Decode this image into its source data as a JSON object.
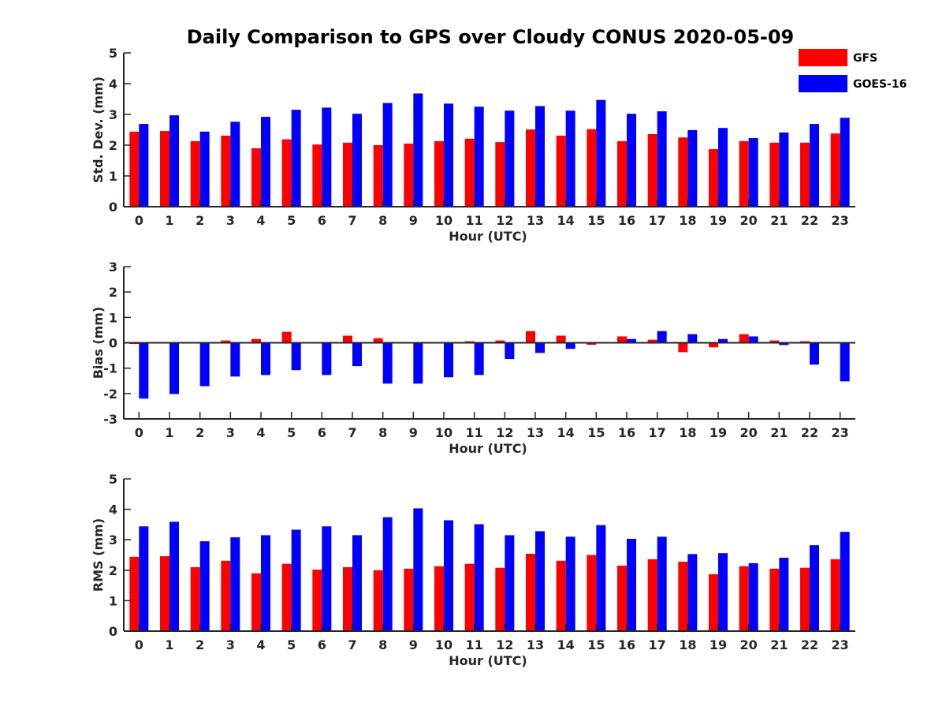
{
  "chart_data": {
    "type": "bar",
    "title": "Daily Comparison to GPS over Cloudy CONUS 2020-05-09",
    "categories": [
      "0",
      "1",
      "2",
      "3",
      "4",
      "5",
      "6",
      "7",
      "8",
      "9",
      "10",
      "11",
      "12",
      "13",
      "14",
      "15",
      "16",
      "17",
      "18",
      "19",
      "20",
      "21",
      "22",
      "23"
    ],
    "legend": {
      "position": "top-right",
      "entries": [
        {
          "name": "GFS",
          "color": "#ff0000"
        },
        {
          "name": "GOES-16",
          "color": "#0000ff"
        }
      ]
    },
    "panels": [
      {
        "xlabel": "Hour (UTC)",
        "ylabel": "Std. Dev. (mm)",
        "ylim": [
          0,
          5
        ],
        "yticks": [
          "0",
          "1",
          "2",
          "3",
          "4",
          "5"
        ],
        "series": [
          {
            "name": "GFS",
            "color": "#ff0000",
            "values": [
              2.44,
              2.46,
              2.13,
              2.31,
              1.9,
              2.19,
              2.02,
              2.08,
              2.0,
              2.05,
              2.13,
              2.21,
              2.1,
              2.51,
              2.31,
              2.52,
              2.13,
              2.36,
              2.25,
              1.87,
              2.13,
              2.08,
              2.08,
              2.38
            ]
          },
          {
            "name": "GOES-16",
            "color": "#0000ff",
            "values": [
              2.69,
              2.97,
              2.44,
              2.76,
              2.92,
              3.15,
              3.22,
              3.02,
              3.37,
              3.68,
              3.35,
              3.25,
              3.12,
              3.27,
              3.12,
              3.47,
              3.02,
              3.1,
              2.49,
              2.56,
              2.23,
              2.41,
              2.69,
              2.89
            ]
          }
        ]
      },
      {
        "xlabel": "Hour (UTC)",
        "ylabel": "Bias (mm)",
        "ylim": [
          -3,
          3
        ],
        "yticks": [
          "-3",
          "-2",
          "-1",
          "0",
          "1",
          "2",
          "3"
        ],
        "series": [
          {
            "name": "GFS",
            "color": "#ff0000",
            "values": [
              -0.05,
              -0.02,
              0.0,
              0.09,
              0.15,
              0.43,
              0.02,
              0.28,
              0.18,
              -0.02,
              0.02,
              0.06,
              0.09,
              0.46,
              0.28,
              -0.08,
              0.25,
              0.12,
              -0.37,
              -0.18,
              0.34,
              0.09,
              0.06,
              0.02
            ]
          },
          {
            "name": "GOES-16",
            "color": "#0000ff",
            "values": [
              -2.2,
              -2.02,
              -1.71,
              -1.33,
              -1.27,
              -1.08,
              -1.27,
              -0.92,
              -1.61,
              -1.61,
              -1.36,
              -1.27,
              -0.64,
              -0.4,
              -0.24,
              0.0,
              0.15,
              0.46,
              0.34,
              0.15,
              0.25,
              -0.09,
              -0.86,
              -1.52
            ]
          }
        ]
      },
      {
        "xlabel": "Hour (UTC)",
        "ylabel": "RMS (mm)",
        "ylim": [
          0,
          5
        ],
        "yticks": [
          "0",
          "1",
          "2",
          "3",
          "4",
          "5"
        ],
        "series": [
          {
            "name": "GFS",
            "color": "#ff0000",
            "values": [
              2.44,
              2.46,
              2.1,
              2.31,
              1.9,
              2.21,
              2.02,
              2.1,
              2.0,
              2.05,
              2.13,
              2.21,
              2.08,
              2.54,
              2.31,
              2.5,
              2.15,
              2.36,
              2.28,
              1.87,
              2.13,
              2.05,
              2.08,
              2.36
            ]
          },
          {
            "name": "GOES-16",
            "color": "#0000ff",
            "values": [
              3.44,
              3.59,
              2.95,
              3.08,
              3.15,
              3.33,
              3.44,
              3.15,
              3.74,
              4.03,
              3.64,
              3.51,
              3.15,
              3.28,
              3.1,
              3.48,
              3.03,
              3.1,
              2.53,
              2.56,
              2.23,
              2.41,
              2.82,
              3.26
            ]
          }
        ]
      }
    ]
  }
}
